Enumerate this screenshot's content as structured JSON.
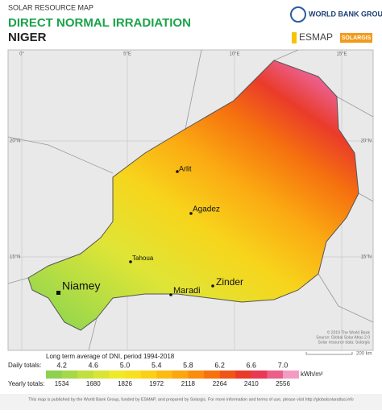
{
  "header": {
    "kicker": "SOLAR RESOURCE MAP",
    "title": "DIRECT NORMAL IRRADIATION",
    "country": "NIGER"
  },
  "logos": {
    "world_bank": "WORLD BANK GROUP",
    "esmap": "ESMAP",
    "solargis": "SOLARGIS"
  },
  "graticule": {
    "lon": [
      "0°",
      "5°E",
      "10°E",
      "15°E"
    ],
    "lat": [
      "20°N",
      "15°N"
    ]
  },
  "cities": [
    "Arlit",
    "Agadez",
    "Tahoua",
    "Niamey",
    "Maradi",
    "Zinder"
  ],
  "credits": [
    "© 2019 The World Bank",
    "Source: Global Solar Atlas 2.0",
    "Solar resource data: Solargis"
  ],
  "scale": "200 km",
  "legend": {
    "title": "Long term average of DNI, period 1994-2018",
    "daily_label": "Daily totals:",
    "daily": [
      "4.2",
      "4.6",
      "5.0",
      "5.4",
      "5.8",
      "6.2",
      "6.6",
      "7.0"
    ],
    "yearly_label": "Yearly totals:",
    "yearly": [
      "1534",
      "1680",
      "1826",
      "1972",
      "2118",
      "2264",
      "2410",
      "2556"
    ],
    "unit": "kWh/m²",
    "colors": [
      "#8fd14f",
      "#a6d84a",
      "#c2df3f",
      "#d9e534",
      "#eeea2a",
      "#f7e11f",
      "#fbd017",
      "#fcbb12",
      "#fca50f",
      "#fa8c0e",
      "#f6720f",
      "#f05518",
      "#ea3b2a",
      "#e83a55",
      "#eb5f8a",
      "#f29bc3"
    ]
  },
  "footer": "This map is published by the World Bank Group, funded by ESMAP, and prepared by Solargis. For more information and terms of use, please visit http://globalsolaratlas.info"
}
